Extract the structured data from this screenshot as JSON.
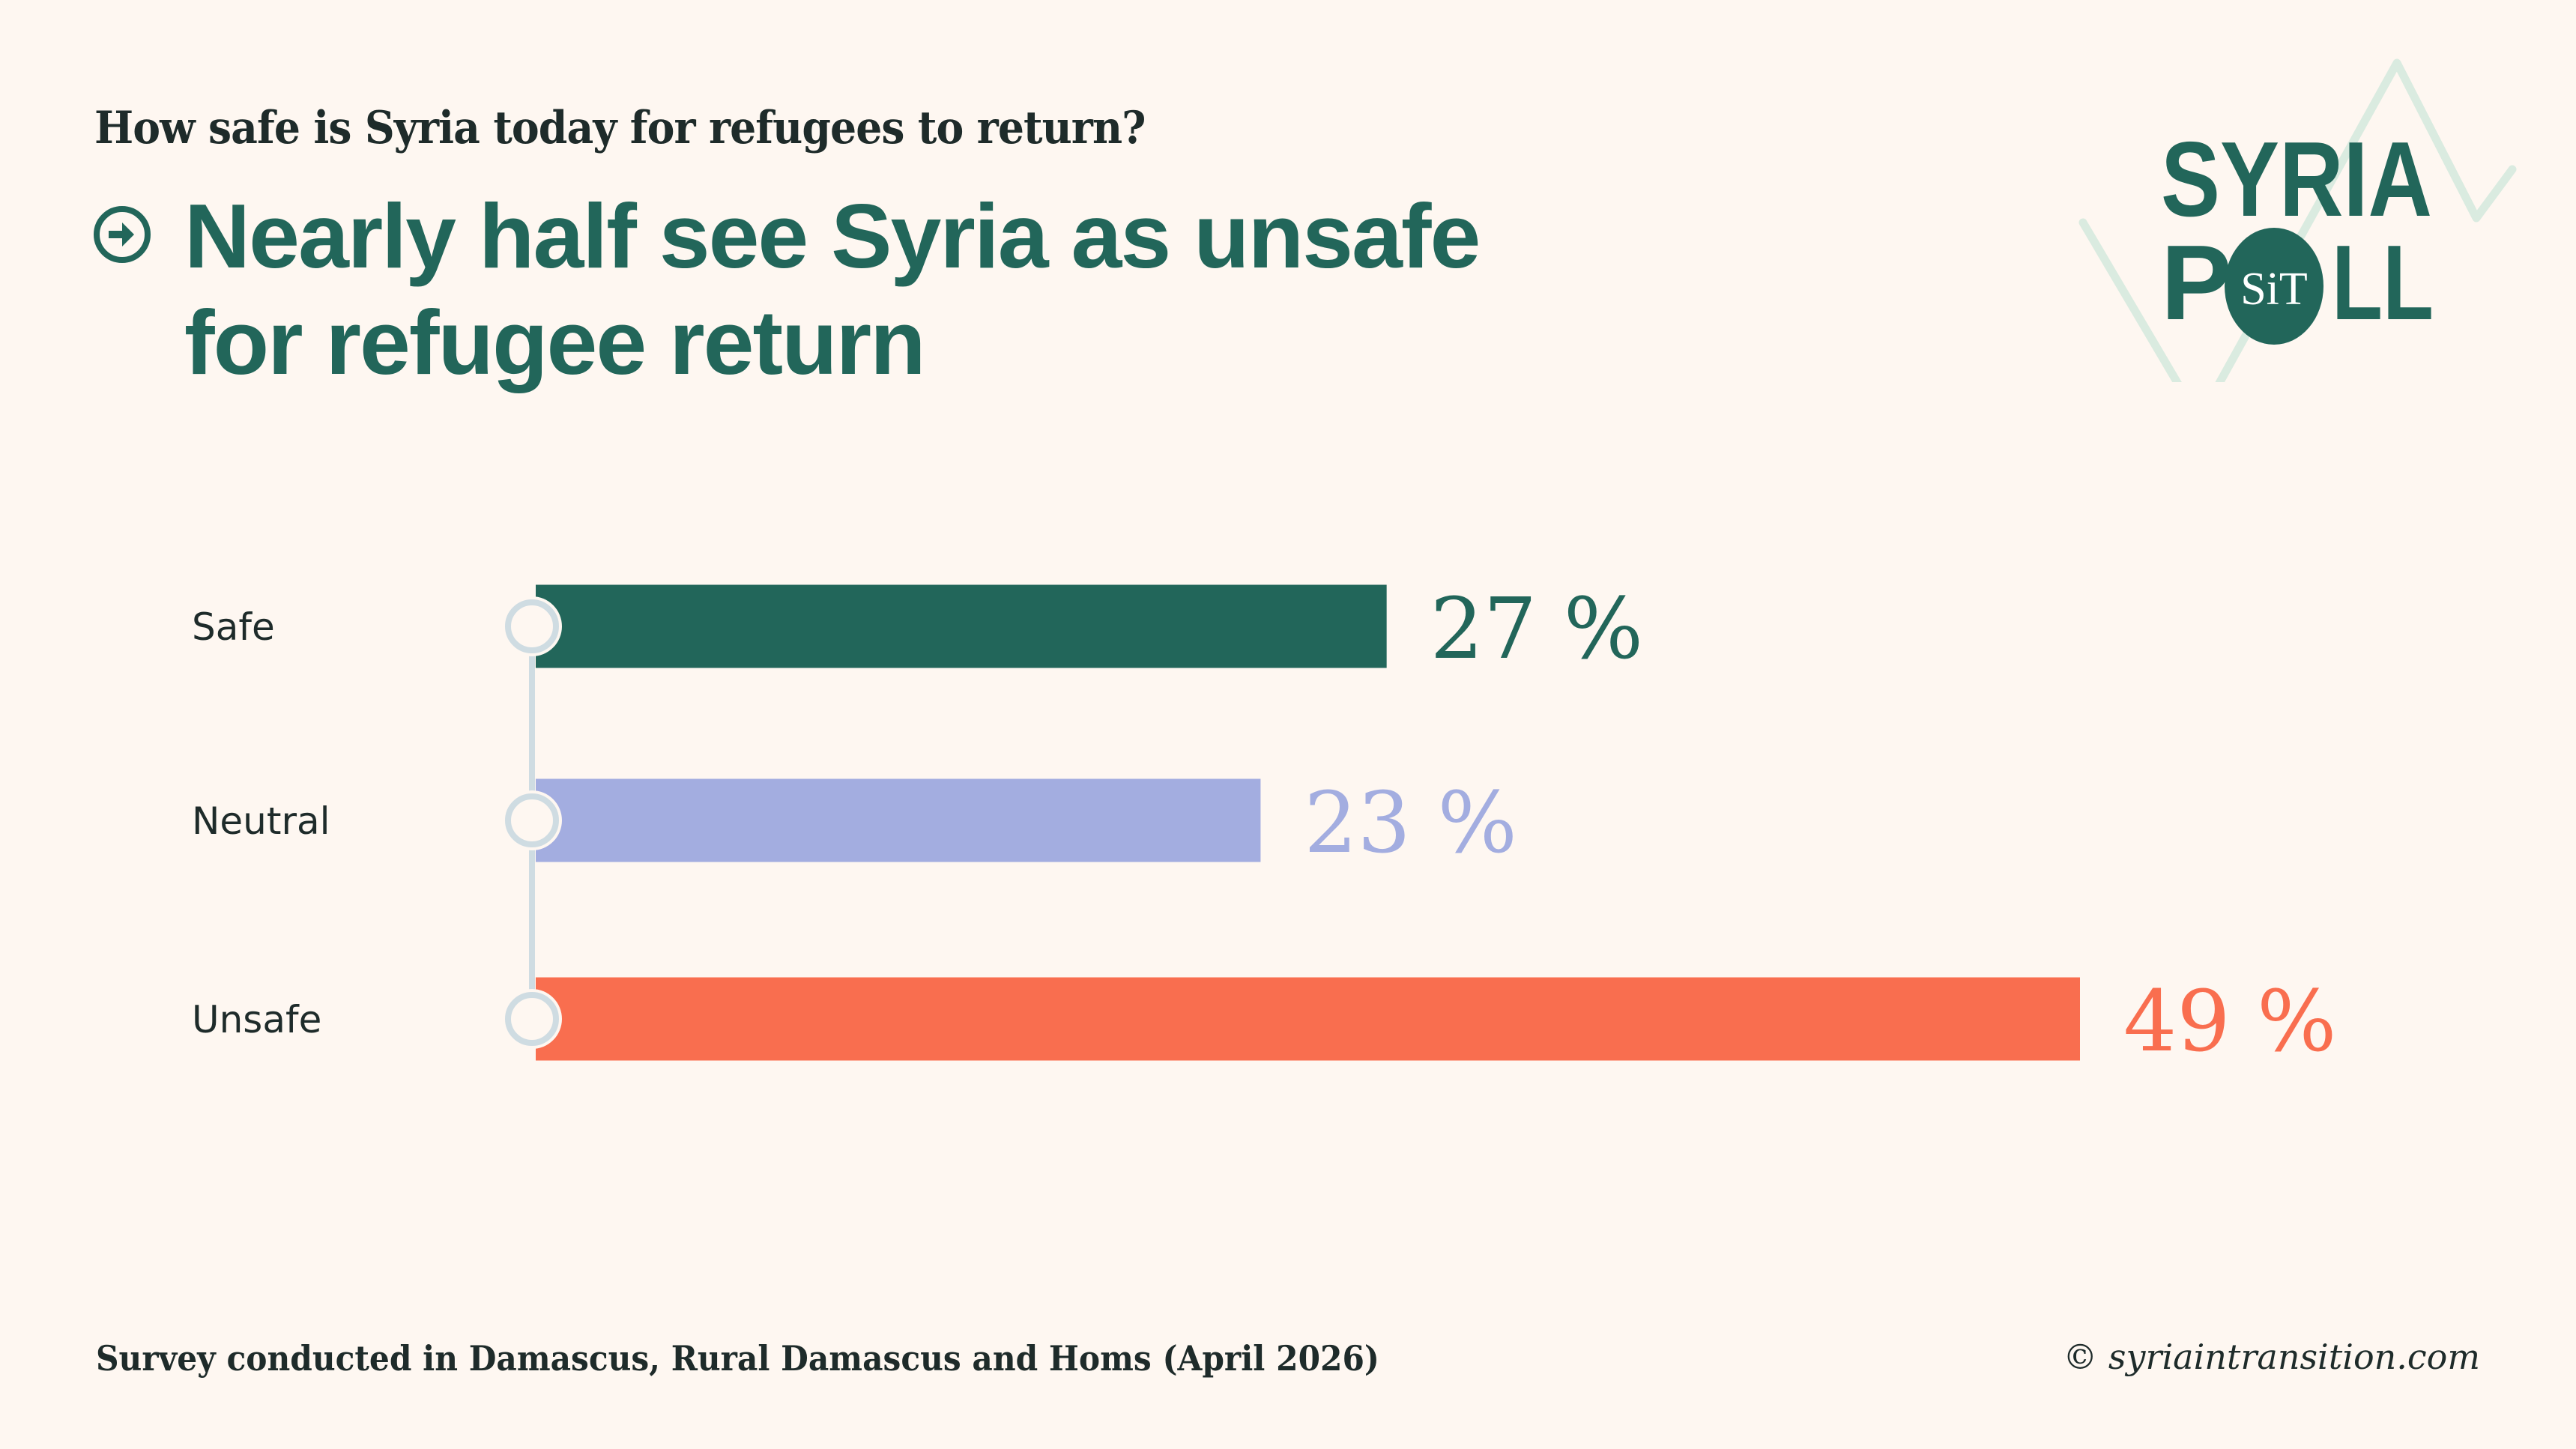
{
  "header": {
    "question": "How safe is Syria today for refugees to return?",
    "headline_line1": "Nearly half see Syria as unsafe",
    "headline_line2": "for refugee return",
    "headline_icon": "arrow-right-circle-icon"
  },
  "logo": {
    "line1": "SYRIA",
    "line2_left": "P",
    "line2_right": "LL",
    "badge": "SiT",
    "primary_color": "#22665A",
    "zigzag_color": "#DAEBE0"
  },
  "colors": {
    "background": "#FEF7F1",
    "marker": "#CFDCE2"
  },
  "chart_data": {
    "type": "bar",
    "orientation": "horizontal",
    "title": "Nearly half see Syria as unsafe for refugee return",
    "subtitle": "How safe is Syria today for refugees to return?",
    "xlabel": "",
    "ylabel": "",
    "unit": "%",
    "categories": [
      "Safe",
      "Neutral",
      "Unsafe"
    ],
    "values": [
      27,
      23,
      49
    ],
    "value_labels": [
      "27 %",
      "23 %",
      "49 %"
    ],
    "colors": [
      "#22665A",
      "#A3ADE0",
      "#F96E4F"
    ],
    "xlim": [
      0,
      49
    ],
    "grid": false,
    "legend": "none"
  },
  "footer": {
    "source": "Survey conducted in Damascus, Rural Damascus and Homs (April 2026)",
    "copyright": "© syriaintransition.com"
  }
}
